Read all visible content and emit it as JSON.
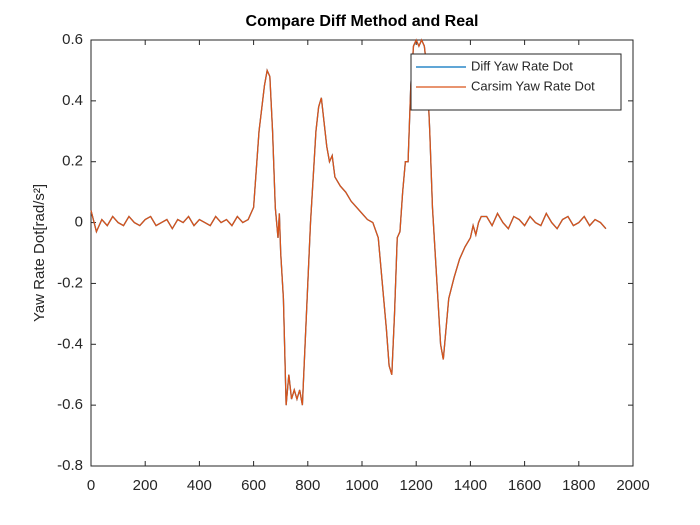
{
  "chart_data": {
    "type": "line",
    "title": "Compare Diff Method and Real",
    "ylabel": "Yaw Rate Dot[rad/s²]",
    "x": [
      0,
      20,
      40,
      60,
      80,
      100,
      120,
      140,
      160,
      180,
      200,
      220,
      240,
      260,
      280,
      300,
      320,
      340,
      360,
      380,
      400,
      420,
      440,
      460,
      480,
      500,
      520,
      540,
      560,
      580,
      600,
      620,
      640,
      650,
      660,
      670,
      680,
      690,
      695,
      700,
      710,
      720,
      730,
      740,
      750,
      760,
      770,
      780,
      790,
      800,
      810,
      820,
      830,
      840,
      850,
      860,
      870,
      880,
      890,
      900,
      920,
      940,
      960,
      980,
      1000,
      1020,
      1040,
      1060,
      1080,
      1090,
      1100,
      1110,
      1120,
      1130,
      1140,
      1150,
      1160,
      1170,
      1180,
      1190,
      1200,
      1210,
      1220,
      1230,
      1240,
      1250,
      1260,
      1270,
      1280,
      1290,
      1300,
      1310,
      1320,
      1340,
      1360,
      1380,
      1400,
      1410,
      1420,
      1430,
      1440,
      1460,
      1480,
      1500,
      1520,
      1540,
      1560,
      1580,
      1600,
      1620,
      1640,
      1660,
      1680,
      1700,
      1720,
      1740,
      1760,
      1780,
      1800,
      1820,
      1840,
      1860,
      1880,
      1900
    ],
    "series": [
      {
        "name": "Diff Yaw Rate Dot",
        "color": "#0072bd",
        "values": [
          0.04,
          -0.03,
          0.01,
          -0.01,
          0.02,
          0,
          -0.01,
          0.02,
          0,
          -0.01,
          0.01,
          0.02,
          -0.01,
          0,
          0.01,
          -0.02,
          0.01,
          0,
          0.02,
          -0.01,
          0.01,
          0,
          -0.01,
          0.02,
          0,
          0.01,
          -0.01,
          0.02,
          0,
          0.01,
          0.05,
          0.3,
          0.45,
          0.5,
          0.48,
          0.3,
          0.05,
          -0.05,
          0.03,
          -0.1,
          -0.25,
          -0.6,
          -0.5,
          -0.58,
          -0.55,
          -0.58,
          -0.55,
          -0.6,
          -0.4,
          -0.2,
          0,
          0.15,
          0.3,
          0.38,
          0.41,
          0.33,
          0.25,
          0.2,
          0.22,
          0.15,
          0.12,
          0.1,
          0.07,
          0.05,
          0.03,
          0.01,
          0,
          -0.05,
          -0.25,
          -0.35,
          -0.47,
          -0.5,
          -0.3,
          -0.05,
          -0.03,
          0.1,
          0.2,
          0.2,
          0.45,
          0.58,
          0.6,
          0.58,
          0.6,
          0.58,
          0.5,
          0.3,
          0.05,
          -0.1,
          -0.25,
          -0.4,
          -0.45,
          -0.35,
          -0.25,
          -0.18,
          -0.12,
          -0.08,
          -0.05,
          -0.01,
          -0.04,
          0,
          0.02,
          0.02,
          -0.01,
          0.03,
          0,
          -0.02,
          0.02,
          0.01,
          -0.01,
          0.02,
          0,
          -0.01,
          0.03,
          0,
          -0.02,
          0.01,
          0.02,
          -0.01,
          0,
          0.02,
          -0.01,
          0.01,
          0,
          -0.02
        ]
      },
      {
        "name": "Carsim Yaw Rate Dot",
        "color": "#d95319",
        "values": [
          0.04,
          -0.03,
          0.01,
          -0.01,
          0.02,
          0,
          -0.01,
          0.02,
          0,
          -0.01,
          0.01,
          0.02,
          -0.01,
          0,
          0.01,
          -0.02,
          0.01,
          0,
          0.02,
          -0.01,
          0.01,
          0,
          -0.01,
          0.02,
          0,
          0.01,
          -0.01,
          0.02,
          0,
          0.01,
          0.05,
          0.3,
          0.45,
          0.5,
          0.48,
          0.3,
          0.05,
          -0.05,
          0.03,
          -0.1,
          -0.25,
          -0.6,
          -0.5,
          -0.58,
          -0.55,
          -0.58,
          -0.55,
          -0.6,
          -0.4,
          -0.2,
          0,
          0.15,
          0.3,
          0.38,
          0.41,
          0.33,
          0.25,
          0.2,
          0.22,
          0.15,
          0.12,
          0.1,
          0.07,
          0.05,
          0.03,
          0.01,
          0,
          -0.05,
          -0.25,
          -0.35,
          -0.47,
          -0.5,
          -0.3,
          -0.05,
          -0.03,
          0.1,
          0.2,
          0.2,
          0.45,
          0.58,
          0.6,
          0.58,
          0.6,
          0.58,
          0.5,
          0.3,
          0.05,
          -0.1,
          -0.25,
          -0.4,
          -0.45,
          -0.35,
          -0.25,
          -0.18,
          -0.12,
          -0.08,
          -0.05,
          -0.01,
          -0.04,
          0,
          0.02,
          0.02,
          -0.01,
          0.03,
          0,
          -0.02,
          0.02,
          0.01,
          -0.01,
          0.02,
          0,
          -0.01,
          0.03,
          0,
          -0.02,
          0.01,
          0.02,
          -0.01,
          0,
          0.02,
          -0.01,
          0.01,
          0,
          -0.02
        ]
      }
    ],
    "xlim": [
      0,
      2000
    ],
    "xticks": [
      0,
      200,
      400,
      600,
      800,
      1000,
      1200,
      1400,
      1600,
      1800,
      2000
    ],
    "ylim": [
      -0.8,
      0.6
    ],
    "yticks": [
      -0.8,
      -0.6,
      -0.4,
      -0.2,
      0,
      0.2,
      0.4,
      0.6
    ],
    "legend": "northeast",
    "grid": false
  }
}
